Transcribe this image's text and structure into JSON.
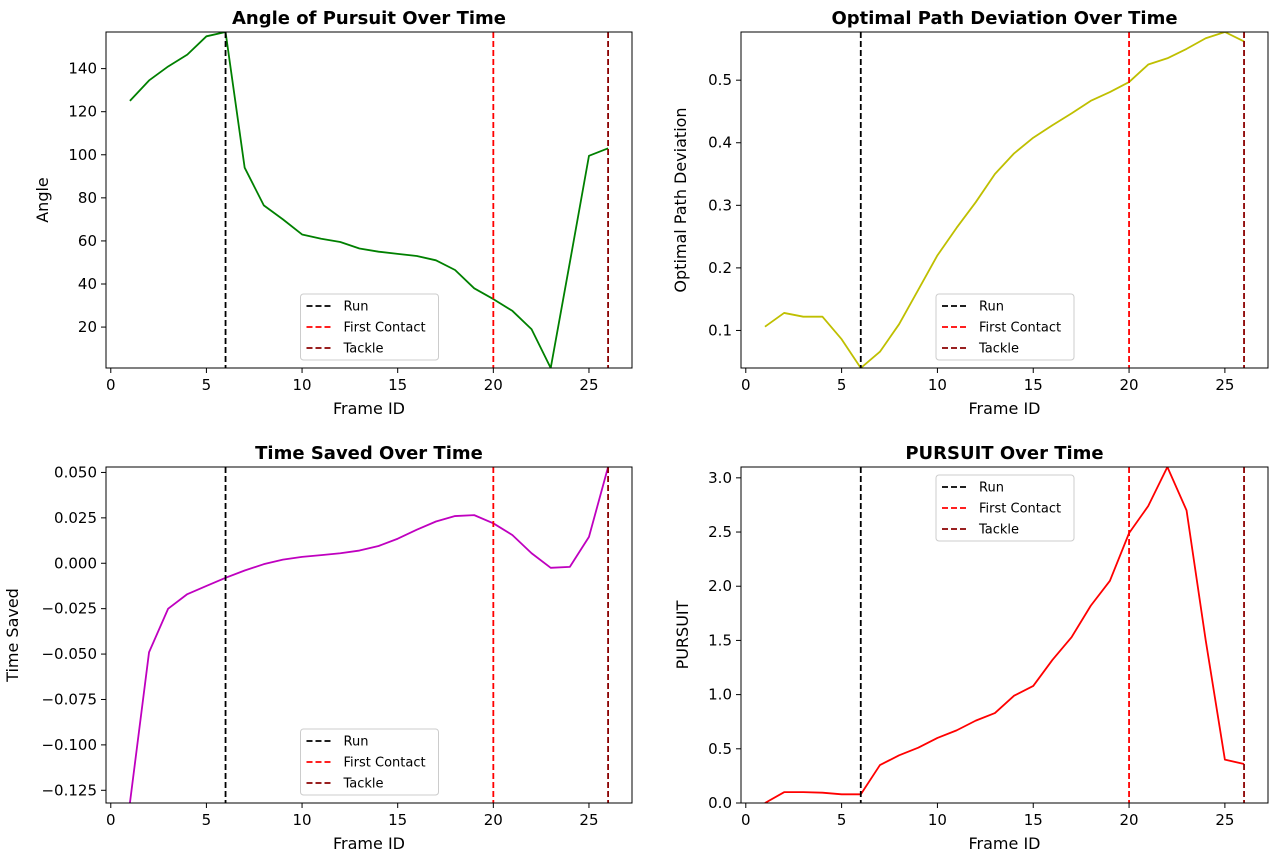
{
  "chart_data": [
    {
      "type": "line",
      "title": "Angle of Pursuit Over Time",
      "xlabel": "Frame ID",
      "ylabel": "Angle",
      "xlim": [
        -0.25,
        27.25
      ],
      "ylim": [
        1,
        157
      ],
      "xticks": [
        0,
        5,
        10,
        15,
        20,
        25
      ],
      "yticks": [
        20,
        40,
        60,
        80,
        100,
        120,
        140
      ],
      "ytick_labels": [
        "20",
        "40",
        "60",
        "80",
        "100",
        "120",
        "140"
      ],
      "legend_position": "lower center",
      "series": [
        {
          "color": "#008000",
          "x": [
            1,
            2,
            3,
            4,
            5,
            6,
            7,
            8,
            9,
            10,
            11,
            12,
            13,
            14,
            15,
            16,
            17,
            18,
            19,
            20,
            21,
            22,
            23,
            24,
            25,
            26
          ],
          "y": [
            125,
            134.5,
            141,
            146.5,
            155,
            157,
            94,
            76.5,
            70,
            63,
            61,
            59.5,
            56.5,
            55,
            54,
            53,
            51,
            46.5,
            38,
            33,
            27.5,
            19,
            1,
            50,
            99.5,
            103
          ]
        }
      ],
      "vlines": [
        {
          "x": 6,
          "label": "Run",
          "color": "#000000"
        },
        {
          "x": 20,
          "label": "First Contact",
          "color": "#ff0000"
        },
        {
          "x": 26,
          "label": "Tackle",
          "color": "#8b0000"
        }
      ]
    },
    {
      "type": "line",
      "title": "Optimal Path Deviation Over Time",
      "xlabel": "Frame ID",
      "ylabel": "Optimal Path Deviation",
      "xlim": [
        -0.25,
        27.25
      ],
      "ylim": [
        0.04,
        0.577
      ],
      "xticks": [
        0,
        5,
        10,
        15,
        20,
        25
      ],
      "yticks": [
        0.1,
        0.2,
        0.3,
        0.4,
        0.5
      ],
      "ytick_labels": [
        "0.1",
        "0.2",
        "0.3",
        "0.4",
        "0.5"
      ],
      "legend_position": "lower center",
      "series": [
        {
          "color": "#bfbf00",
          "x": [
            1,
            2,
            3,
            4,
            5,
            6,
            7,
            8,
            9,
            10,
            11,
            12,
            13,
            14,
            15,
            16,
            17,
            18,
            19,
            20,
            21,
            22,
            23,
            24,
            25,
            26
          ],
          "y": [
            0.106,
            0.128,
            0.122,
            0.122,
            0.086,
            0.04,
            0.066,
            0.11,
            0.165,
            0.22,
            0.264,
            0.305,
            0.35,
            0.383,
            0.408,
            0.428,
            0.447,
            0.467,
            0.481,
            0.497,
            0.525,
            0.535,
            0.55,
            0.567,
            0.577,
            0.562
          ]
        }
      ],
      "vlines": [
        {
          "x": 6,
          "label": "Run",
          "color": "#000000"
        },
        {
          "x": 20,
          "label": "First Contact",
          "color": "#ff0000"
        },
        {
          "x": 26,
          "label": "Tackle",
          "color": "#8b0000"
        }
      ]
    },
    {
      "type": "line",
      "title": "Time Saved Over Time",
      "xlabel": "Frame ID",
      "ylabel": "Time Saved",
      "xlim": [
        -0.25,
        27.25
      ],
      "ylim": [
        -0.132,
        0.053
      ],
      "xticks": [
        0,
        5,
        10,
        15,
        20,
        25
      ],
      "yticks": [
        -0.125,
        -0.1,
        -0.075,
        -0.05,
        -0.025,
        0,
        0.025,
        0.05
      ],
      "ytick_labels": [
        "−0.125",
        "−0.100",
        "−0.075",
        "−0.050",
        "−0.025",
        "0.000",
        "0.025",
        "0.050"
      ],
      "legend_position": "lower center",
      "series": [
        {
          "color": "#bf00bf",
          "x": [
            1,
            2,
            3,
            4,
            5,
            6,
            7,
            8,
            9,
            10,
            11,
            12,
            13,
            14,
            15,
            16,
            17,
            18,
            19,
            20,
            21,
            22,
            23,
            24,
            25,
            26
          ],
          "y": [
            -0.132,
            -0.049,
            -0.025,
            -0.017,
            -0.0125,
            -0.008,
            -0.004,
            -0.0005,
            0.002,
            0.0035,
            0.0045,
            0.0055,
            0.007,
            0.0095,
            0.0135,
            0.0185,
            0.023,
            0.026,
            0.0265,
            0.022,
            0.0155,
            0.0055,
            -0.0025,
            -0.002,
            0.0145,
            0.053
          ]
        }
      ],
      "vlines": [
        {
          "x": 6,
          "label": "Run",
          "color": "#000000"
        },
        {
          "x": 20,
          "label": "First Contact",
          "color": "#ff0000"
        },
        {
          "x": 26,
          "label": "Tackle",
          "color": "#8b0000"
        }
      ]
    },
    {
      "type": "line",
      "title": "PURSUIT Over Time",
      "xlabel": "Frame ID",
      "ylabel": "PURSUIT",
      "xlim": [
        -0.25,
        27.25
      ],
      "ylim": [
        0,
        3.1
      ],
      "xticks": [
        0,
        5,
        10,
        15,
        20,
        25
      ],
      "yticks": [
        0,
        0.5,
        1,
        1.5,
        2,
        2.5,
        3
      ],
      "ytick_labels": [
        "0.0",
        "0.5",
        "1.0",
        "1.5",
        "2.0",
        "2.5",
        "3.0"
      ],
      "legend_position": "upper center",
      "series": [
        {
          "color": "#ff0000",
          "x": [
            1,
            2,
            3,
            4,
            5,
            6,
            7,
            8,
            9,
            10,
            11,
            12,
            13,
            14,
            15,
            16,
            17,
            18,
            19,
            20,
            21,
            22,
            23,
            24,
            25,
            26
          ],
          "y": [
            0,
            0.1,
            0.1,
            0.095,
            0.08,
            0.08,
            0.35,
            0.44,
            0.51,
            0.6,
            0.67,
            0.76,
            0.83,
            0.99,
            1.08,
            1.32,
            1.53,
            1.82,
            2.05,
            2.49,
            2.74,
            3.1,
            2.7,
            1.5,
            0.4,
            0.36
          ]
        }
      ],
      "vlines": [
        {
          "x": 6,
          "label": "Run",
          "color": "#000000"
        },
        {
          "x": 20,
          "label": "First Contact",
          "color": "#ff0000"
        },
        {
          "x": 26,
          "label": "Tackle",
          "color": "#8b0000"
        }
      ]
    }
  ]
}
